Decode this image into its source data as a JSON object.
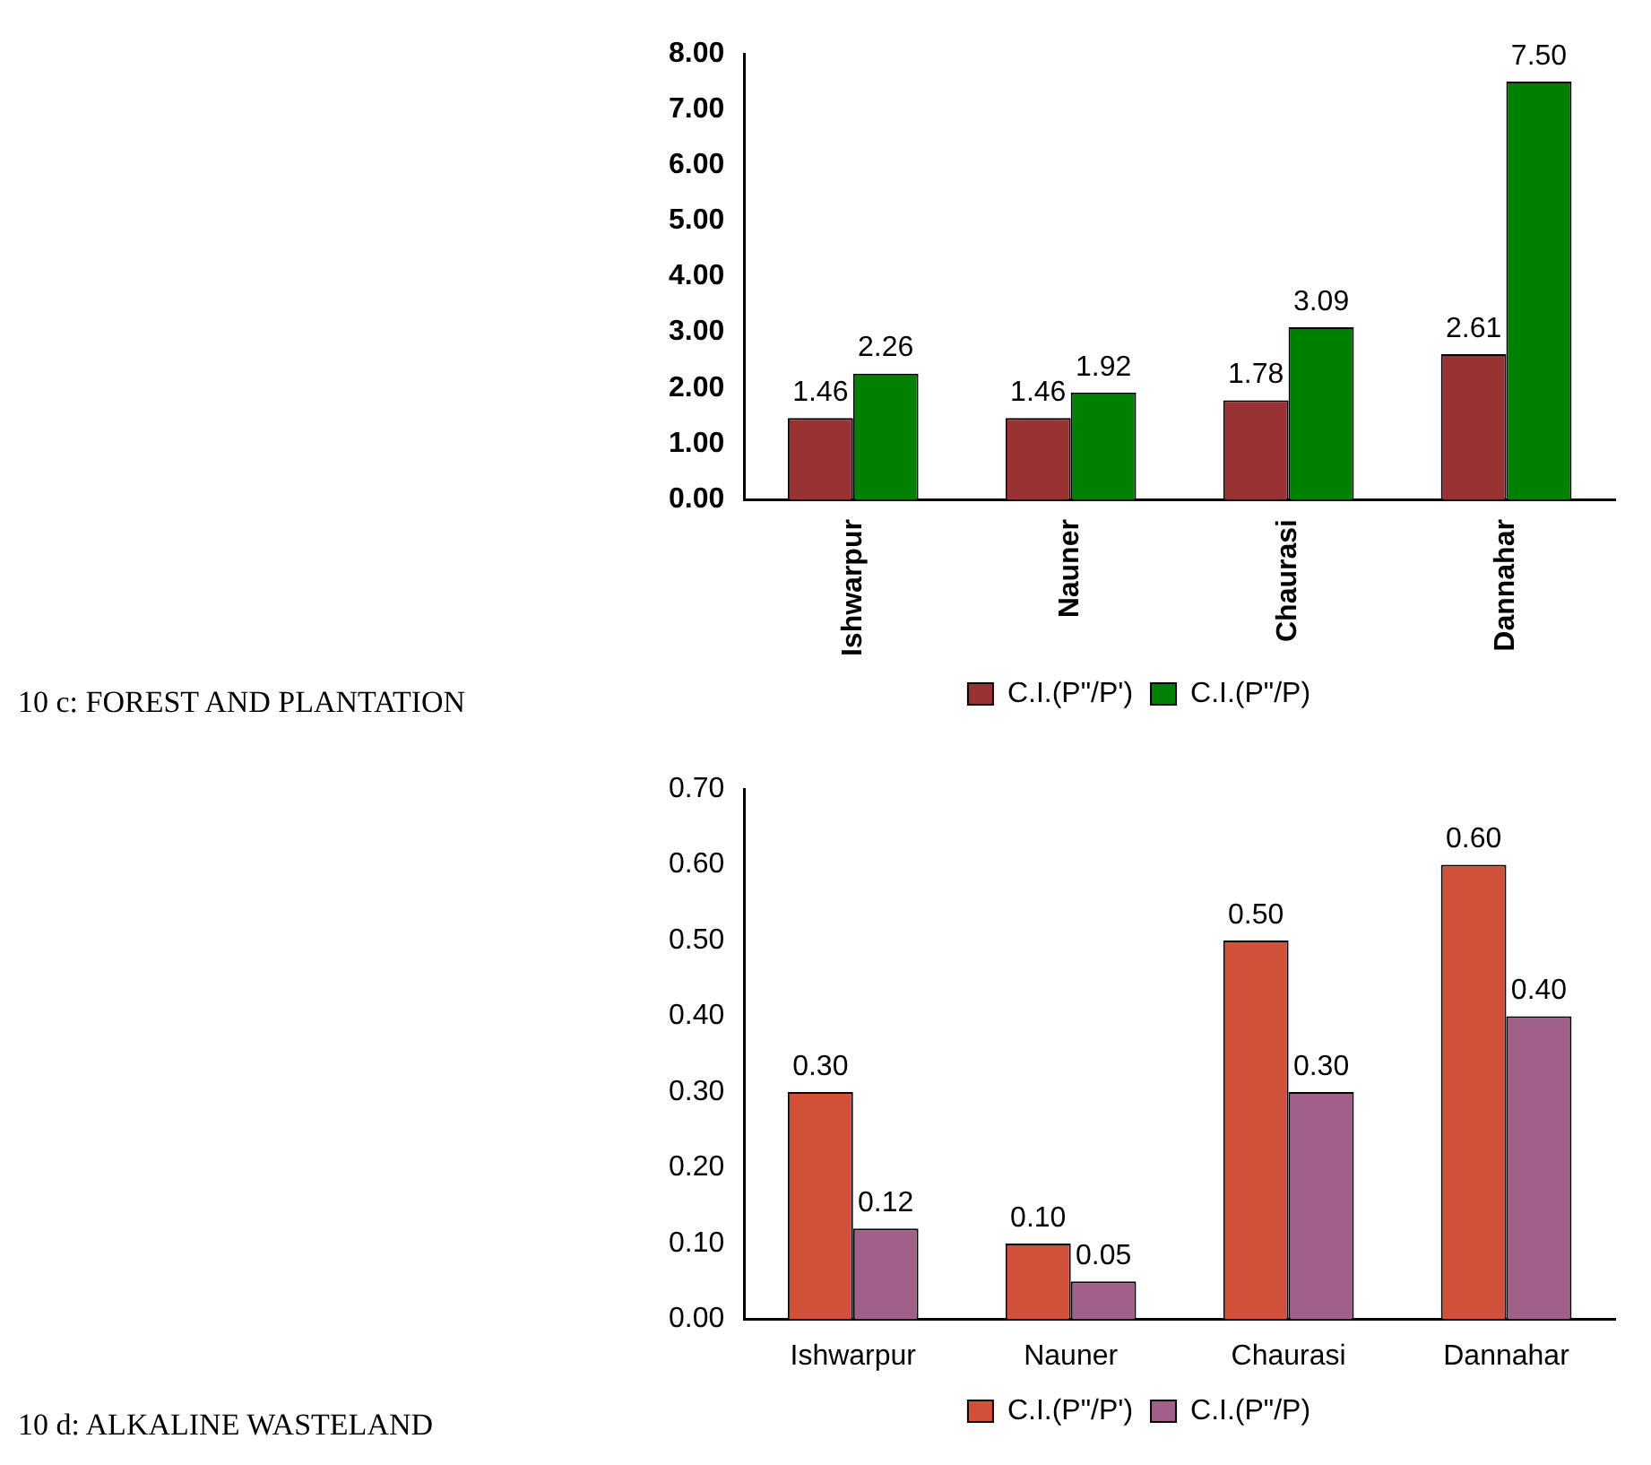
{
  "chart_data": [
    {
      "type": "bar",
      "annotations": [
        "10 c: FOREST AND PLANTATION"
      ],
      "categories": [
        "Ishwarpur",
        "Nauner",
        "Chaurasi",
        "Dannahar"
      ],
      "series": [
        {
          "name": "C.I.(P\"/P')",
          "color": "#993333",
          "values": [
            1.46,
            1.46,
            1.78,
            2.61
          ],
          "value_labels": [
            "1.46",
            "1.46",
            "1.78",
            "2.61"
          ]
        },
        {
          "name": "C.I.(P\"/P)",
          "color": "#008000",
          "values": [
            2.26,
            1.92,
            3.09,
            7.5
          ],
          "value_labels": [
            "2.26",
            "1.92",
            "3.09",
            "7.50"
          ]
        }
      ],
      "ylim": [
        0,
        8
      ],
      "yticks": [
        {
          "value": 0,
          "label": "0.00"
        },
        {
          "value": 1,
          "label": "1.00"
        },
        {
          "value": 2,
          "label": "2.00"
        },
        {
          "value": 3,
          "label": "3.00"
        },
        {
          "value": 4,
          "label": "4.00"
        },
        {
          "value": 5,
          "label": "5.00"
        },
        {
          "value": 6,
          "label": "6.00"
        },
        {
          "value": 7,
          "label": "7.00"
        },
        {
          "value": 8,
          "label": "8.00"
        }
      ],
      "grid": false,
      "legend": "bottom"
    },
    {
      "type": "bar",
      "annotations": [
        "10 d: ALKALINE WASTELAND"
      ],
      "categories": [
        "Ishwarpur",
        "Nauner",
        "Chaurasi",
        "Dannahar"
      ],
      "series": [
        {
          "name": "C.I.(P\"/P')",
          "color": "#d0503a",
          "values": [
            0.3,
            0.1,
            0.5,
            0.6
          ],
          "value_labels": [
            "0.30",
            "0.10",
            "0.50",
            "0.60"
          ]
        },
        {
          "name": "C.I.(P\"/P)",
          "color": "#a0608a",
          "values": [
            0.12,
            0.05,
            0.3,
            0.4
          ],
          "value_labels": [
            "0.12",
            "0.05",
            "0.30",
            "0.40"
          ]
        }
      ],
      "ylim": [
        0,
        0.7
      ],
      "yticks": [
        {
          "value": 0,
          "label": "0.00"
        },
        {
          "value": 0.1,
          "label": "0.10"
        },
        {
          "value": 0.2,
          "label": "0.20"
        },
        {
          "value": 0.3,
          "label": "0.30"
        },
        {
          "value": 0.4,
          "label": "0.40"
        },
        {
          "value": 0.5,
          "label": "0.50"
        },
        {
          "value": 0.6,
          "label": "0.60"
        },
        {
          "value": 0.7,
          "label": "0.70"
        }
      ],
      "grid": false,
      "legend": "bottom"
    }
  ]
}
